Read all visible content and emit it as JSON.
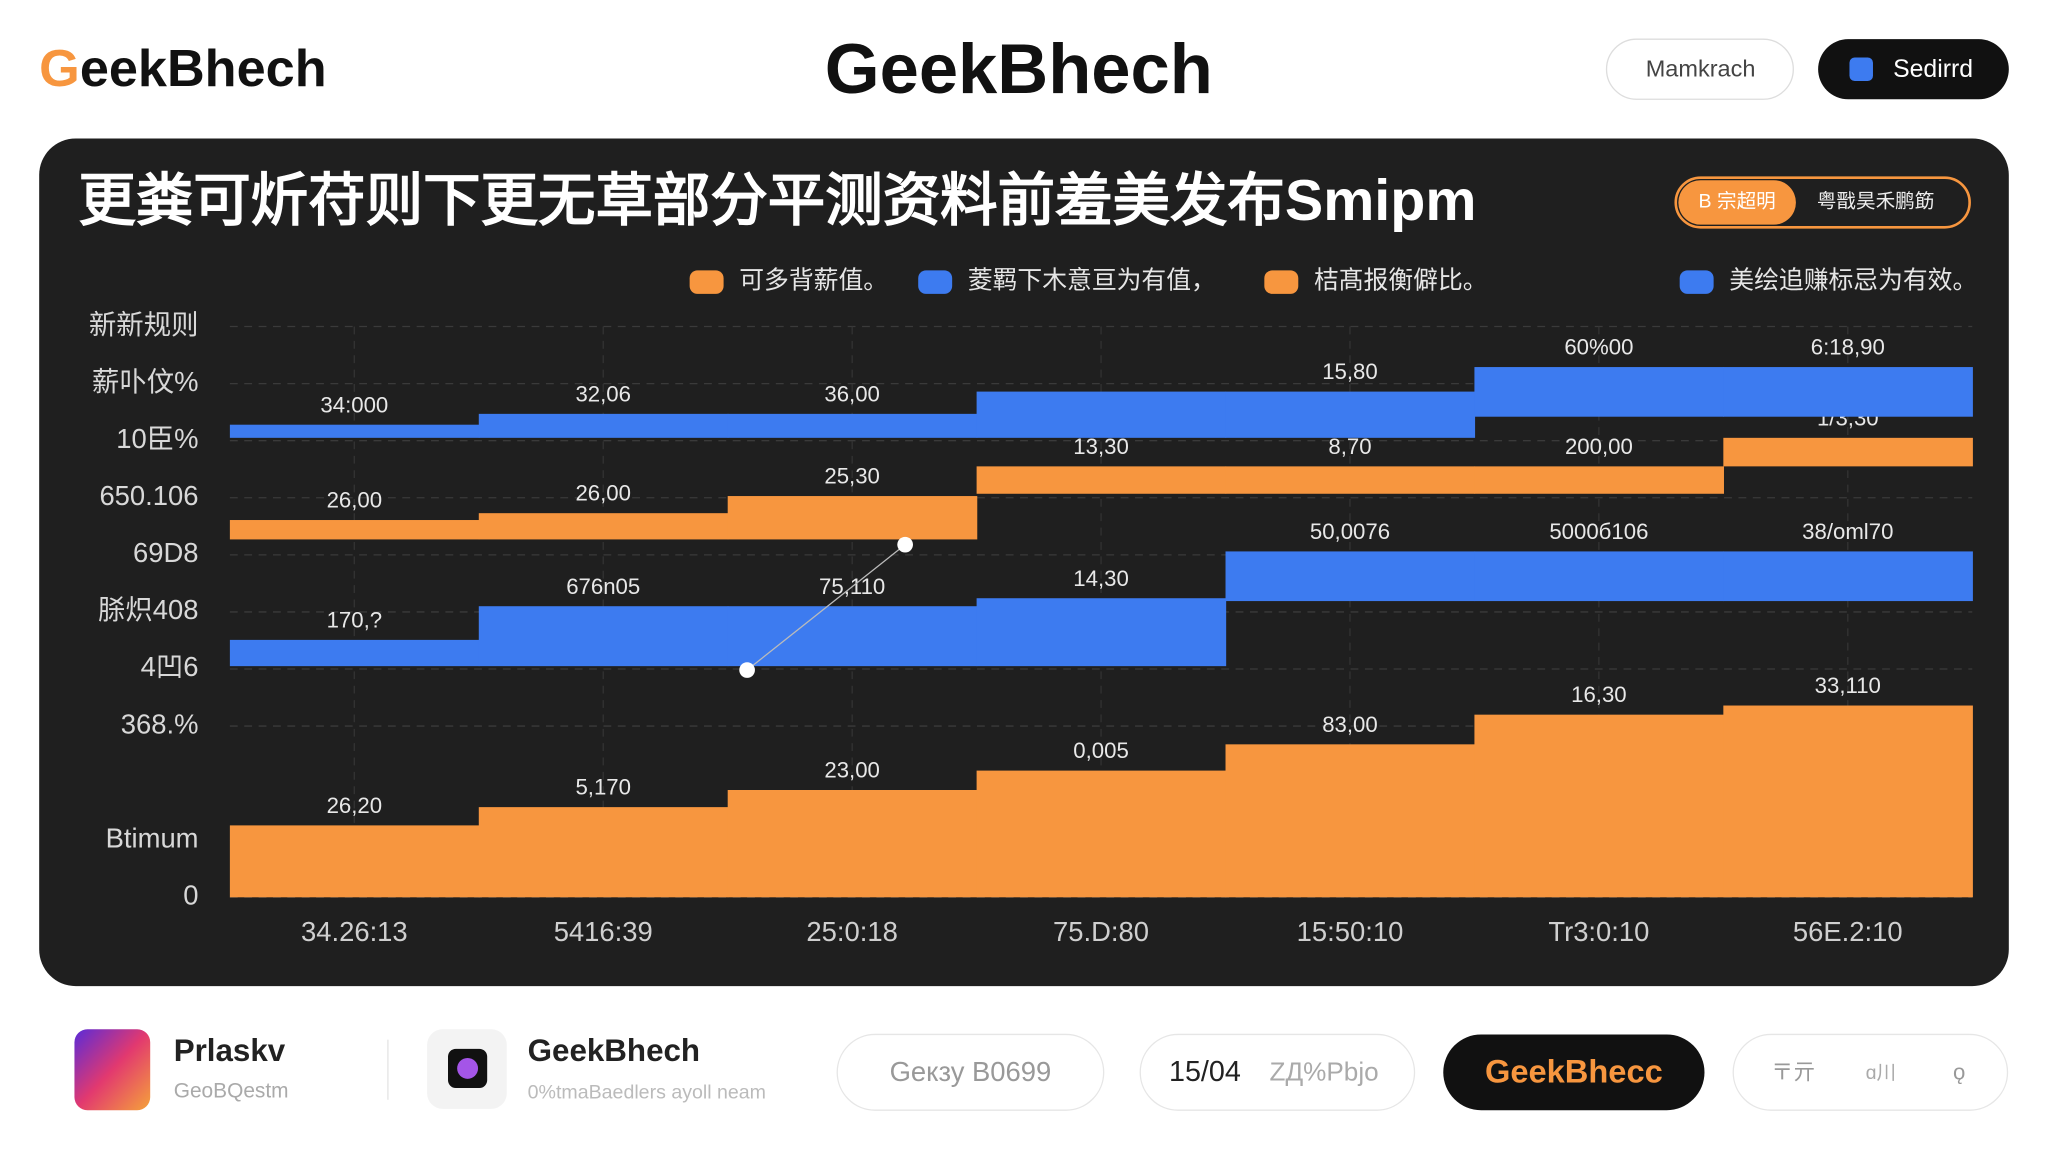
{
  "header": {
    "logo_initial": "G",
    "logo_rest": "eekBhech",
    "title": "GeekBhech",
    "buttons": [
      "Mamkrach",
      "Sedirrd"
    ]
  },
  "panel": {
    "title": "更粪可炘苻则下更无草部分平测资料前羞美发布Smipm",
    "badge": [
      "B 宗超明",
      "粤戬昊禾鹏筯"
    ]
  },
  "chart_data": {
    "type": "step-range",
    "categories": [
      "34.26:13",
      "5416:39",
      "25:0:18",
      "75.D:80",
      "15:50:10",
      "Tr3:0:10",
      "56E.2:10"
    ],
    "ylim": [
      0,
      100
    ],
    "yticks": [
      0,
      {
        "value": 10,
        "label": "Btimum"
      },
      {
        "value": 30,
        "label": "368.%"
      },
      {
        "value": 40,
        "label": "4凹6"
      },
      {
        "value": 50,
        "label": "脎炽408"
      },
      {
        "value": 60,
        "label": "69D8"
      },
      {
        "value": 70,
        "label": "650.106"
      },
      {
        "value": 80,
        "label": "10臣%"
      },
      {
        "value": 90,
        "label": "薪卟伩%"
      },
      {
        "value": 100,
        "label": "新新规则"
      }
    ],
    "grid": true,
    "series": [
      {
        "name": "可多背薪值。",
        "color": "#f7963f",
        "values": [
          12.6,
          15.8,
          18.8,
          22.2,
          26.8,
          32,
          33.6
        ],
        "lows": [
          0,
          0,
          0,
          0,
          0,
          0,
          0
        ],
        "labels": [
          "26,20",
          "5,170",
          "23,00",
          "0,005",
          "83,00",
          "16,30",
          "33,110"
        ]
      },
      {
        "name": "菱羁下木意亘为有值，",
        "color": "#3d7bf0",
        "values": [
          45.1,
          51,
          51,
          52.4,
          60.6,
          60.6,
          60.6
        ],
        "lows": [
          40.5,
          40.5,
          40.5,
          40.5,
          51.9,
          51.9,
          51.9
        ],
        "labels": [
          "170,?",
          "676n05",
          "75,110",
          "14,30",
          "50,0076",
          "5000б106",
          "38/oml70"
        ]
      },
      {
        "name": "桔髙报衡僻比。",
        "color": "#f7963f",
        "values": [
          66.1,
          67.3,
          70.3,
          75.5,
          75.5,
          75.5,
          80.5
        ],
        "lows": [
          62.7,
          62.7,
          62.7,
          70.7,
          70.7,
          70.7,
          75.5
        ],
        "labels": [
          "26,00",
          "26,00",
          "25,30",
          "13,30",
          "8,70",
          "200,00",
          "1/3,30"
        ]
      },
      {
        "name": "美绘追赚标忌为有效。",
        "color": "#3d7bf0",
        "values": [
          82.8,
          84.7,
          84.7,
          88.6,
          88.6,
          92.9,
          92.9
        ],
        "lows": [
          80.5,
          80.5,
          80.5,
          80.5,
          80.5,
          84.2,
          84.2
        ],
        "labels": [
          "34:000",
          "32,06",
          "36,00",
          null,
          "15,80",
          "60%00",
          "6:18,90"
        ]
      }
    ]
  },
  "footer": {
    "apps": [
      {
        "name": "Prlaskv",
        "sub": "GeoBQestm"
      },
      {
        "name": "GeekBhech",
        "sub": "0%tmaBaedlers ayoll neam"
      }
    ],
    "search": "Geкзу B0699",
    "date": "15/04",
    "date_note": "ZД%Pbjo",
    "cta": "GeekBhecc",
    "icons": [
      "〒亓",
      "ɑ川",
      "ǫ"
    ]
  }
}
